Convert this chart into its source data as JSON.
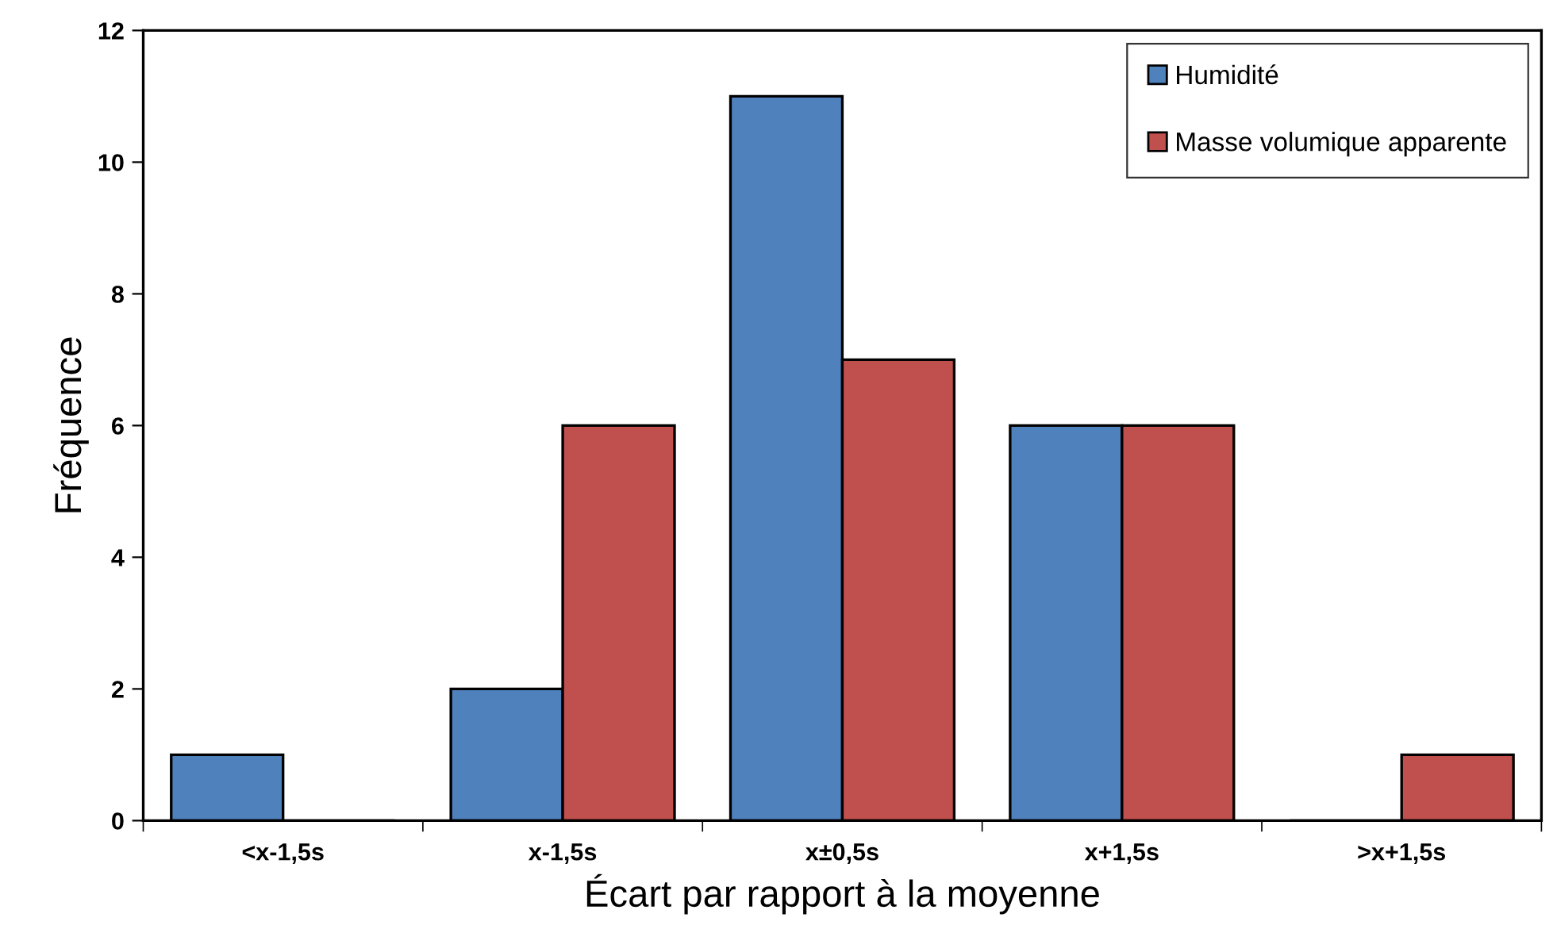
{
  "chart_data": {
    "type": "bar",
    "xlabel": "Écart par rapport à la moyenne",
    "ylabel": "Fréquence",
    "categories": [
      "<x-1,5s",
      "x-1,5s",
      "x±0,5s",
      "x+1,5s",
      ">x+1,5s"
    ],
    "series": [
      {
        "name": "Humidité",
        "color": "#4f81bd",
        "values": [
          1,
          2,
          11,
          6,
          0
        ]
      },
      {
        "name": "Masse volumique apparente",
        "color": "#c0504d",
        "values": [
          0,
          6,
          7,
          6,
          1
        ]
      }
    ],
    "ylim": [
      0,
      12
    ],
    "yticks": [
      0,
      2,
      4,
      6,
      8,
      10,
      12
    ],
    "grid": false,
    "legend": "top right"
  }
}
